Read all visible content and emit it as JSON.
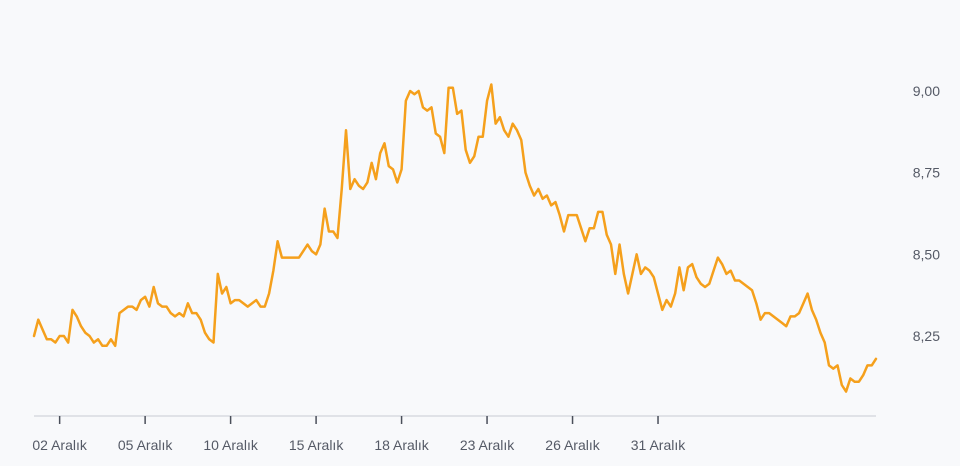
{
  "chart_data": {
    "type": "line",
    "title": "",
    "xlabel": "",
    "ylabel": "",
    "y_axis_position": "right",
    "ylim": [
      8.0,
      9.1
    ],
    "y_ticks": [
      {
        "value": 8.25,
        "label": "8,25"
      },
      {
        "value": 8.5,
        "label": "8,50"
      },
      {
        "value": 8.75,
        "label": "8,75"
      },
      {
        "value": 9.0,
        "label": "9,00"
      }
    ],
    "x_ticks": [
      {
        "index": 6,
        "label": "02 Aralık"
      },
      {
        "index": 26,
        "label": "05 Aralık"
      },
      {
        "index": 46,
        "label": "10 Aralık"
      },
      {
        "index": 66,
        "label": "15 Aralık"
      },
      {
        "index": 86,
        "label": "18 Aralık"
      },
      {
        "index": 106,
        "label": "23 Aralık"
      },
      {
        "index": 126,
        "label": "26 Aralık"
      },
      {
        "index": 146,
        "label": "31 Aralık"
      }
    ],
    "line_color": "#f5a01c",
    "grid": false,
    "series": [
      {
        "values": [
          8.25,
          8.3,
          8.27,
          8.24,
          8.24,
          8.23,
          8.25,
          8.25,
          8.23,
          8.33,
          8.31,
          8.28,
          8.26,
          8.25,
          8.23,
          8.24,
          8.22,
          8.22,
          8.24,
          8.22,
          8.32,
          8.33,
          8.34,
          8.34,
          8.33,
          8.36,
          8.37,
          8.34,
          8.4,
          8.35,
          8.34,
          8.34,
          8.32,
          8.31,
          8.32,
          8.31,
          8.35,
          8.32,
          8.32,
          8.3,
          8.26,
          8.24,
          8.23,
          8.44,
          8.38,
          8.4,
          8.35,
          8.36,
          8.36,
          8.35,
          8.34,
          8.35,
          8.36,
          8.34,
          8.34,
          8.38,
          8.45,
          8.54,
          8.49,
          8.49,
          8.49,
          8.49,
          8.49,
          8.51,
          8.53,
          8.51,
          8.5,
          8.53,
          8.64,
          8.57,
          8.57,
          8.55,
          8.7,
          8.88,
          8.7,
          8.73,
          8.71,
          8.7,
          8.72,
          8.78,
          8.73,
          8.81,
          8.84,
          8.77,
          8.76,
          8.72,
          8.76,
          8.97,
          9.0,
          8.99,
          9.0,
          8.95,
          8.94,
          8.95,
          8.87,
          8.86,
          8.81,
          9.01,
          9.01,
          8.93,
          8.94,
          8.82,
          8.78,
          8.8,
          8.86,
          8.86,
          8.97,
          9.02,
          8.9,
          8.92,
          8.88,
          8.86,
          8.9,
          8.88,
          8.85,
          8.75,
          8.71,
          8.68,
          8.7,
          8.67,
          8.68,
          8.65,
          8.66,
          8.62,
          8.57,
          8.62,
          8.62,
          8.62,
          8.58,
          8.54,
          8.58,
          8.58,
          8.63,
          8.63,
          8.56,
          8.53,
          8.44,
          8.53,
          8.44,
          8.38,
          8.44,
          8.5,
          8.44,
          8.46,
          8.45,
          8.43,
          8.38,
          8.33,
          8.36,
          8.34,
          8.38,
          8.46,
          8.39,
          8.46,
          8.47,
          8.43,
          8.41,
          8.4,
          8.41,
          8.45,
          8.49,
          8.47,
          8.44,
          8.45,
          8.42,
          8.42,
          8.41,
          8.4,
          8.39,
          8.35,
          8.3,
          8.32,
          8.32,
          8.31,
          8.3,
          8.29,
          8.28,
          8.31,
          8.31,
          8.32,
          8.35,
          8.38,
          8.33,
          8.3,
          8.26,
          8.23,
          8.16,
          8.15,
          8.16,
          8.1,
          8.08,
          8.12,
          8.11,
          8.11,
          8.13,
          8.16,
          8.16,
          8.18
        ]
      }
    ]
  }
}
